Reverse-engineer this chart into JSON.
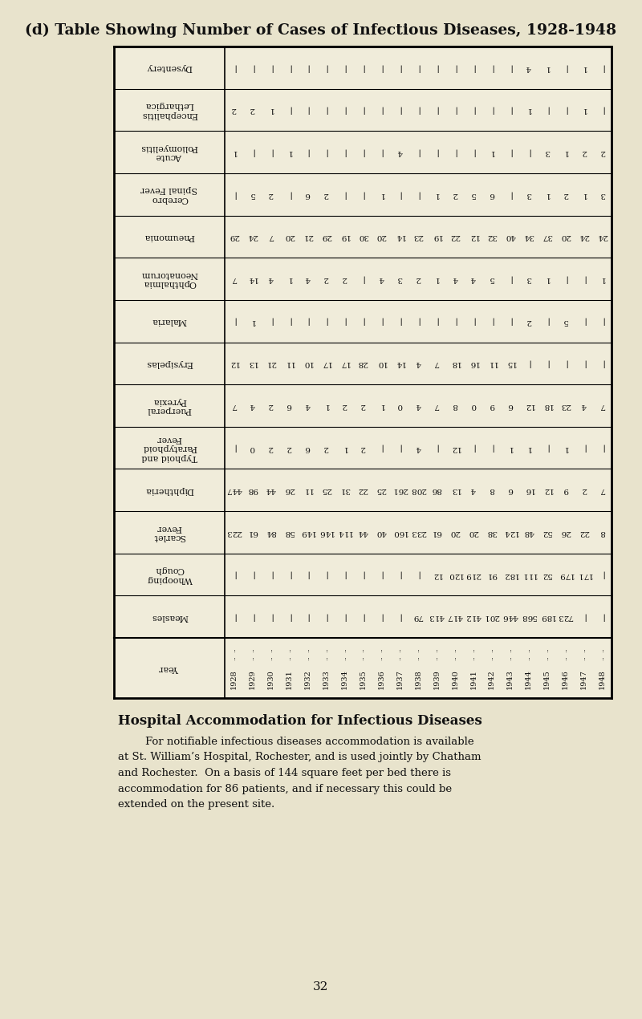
{
  "title": "(d) Table Showing Number of Cases of Infectious Diseases, 1928-1948",
  "years": [
    "1928",
    "1929",
    "1930",
    "1931",
    "1932",
    "1933",
    "1934",
    "1935",
    "1936",
    "1937",
    "1938",
    "1939",
    "1940",
    "1941",
    "1942",
    "1943",
    "1944",
    "1945",
    "1946",
    "1947",
    "1948"
  ],
  "rows": [
    {
      "label": "Dysentery",
      "values": [
        "",
        "",
        "",
        "",
        "",
        "",
        "",
        "",
        "",
        "",
        "",
        "",
        "",
        "",
        "",
        "",
        "4",
        "1",
        "",
        "1",
        ""
      ]
    },
    {
      "label": "Encephalitis\nLethargica",
      "values": [
        "2",
        "2",
        "1",
        "",
        "",
        "",
        "",
        "",
        "",
        "",
        "",
        "",
        "",
        "",
        "",
        "",
        "1",
        "",
        "",
        "1",
        ""
      ]
    },
    {
      "label": "Acute\nPoliomyelitis",
      "values": [
        "1",
        "",
        "",
        "1",
        "",
        "",
        "",
        "",
        "",
        "4",
        "",
        "",
        "",
        "",
        "1",
        "",
        "",
        "3",
        "1",
        "2",
        "2"
      ]
    },
    {
      "label": "Cerebro\nSpinal Fever",
      "values": [
        "",
        "5",
        "2",
        "",
        "6",
        "2",
        "",
        "",
        "1",
        "",
        "",
        "1",
        "2",
        "5",
        "6",
        "",
        "3",
        "1",
        "2",
        "1",
        "3"
      ]
    },
    {
      "label": "Pneumonia",
      "values": [
        "29",
        "24",
        "7",
        "20",
        "21",
        "29",
        "19",
        "30",
        "20",
        "14",
        "23",
        "19",
        "22",
        "12",
        "32",
        "40",
        "34",
        "37",
        "20",
        "24",
        "24"
      ]
    },
    {
      "label": "Ophthalmia\nNeonatorum",
      "values": [
        "7",
        "14",
        "4",
        "1",
        "4",
        "2",
        "2",
        "",
        "4",
        "3",
        "2",
        "1",
        "4",
        "4",
        "5",
        "",
        "3",
        "1",
        "",
        "",
        "1"
      ]
    },
    {
      "label": "Malaria",
      "values": [
        "",
        "1",
        "",
        "",
        "",
        "",
        "",
        "",
        "",
        "",
        "",
        "",
        "",
        "",
        "",
        "",
        "2",
        "",
        "5",
        "",
        ""
      ]
    },
    {
      "label": "Erysipelas",
      "values": [
        "12",
        "13",
        "21",
        "11",
        "10",
        "17",
        "17",
        "28",
        "10",
        "14",
        "4",
        "7",
        "18",
        "16",
        "11",
        "15",
        "",
        "",
        "",
        "",
        ""
      ]
    },
    {
      "label": "Puerperal\nPyrexia",
      "values": [
        "7",
        "4",
        "2",
        "6",
        "4",
        "1",
        "2",
        "2",
        "1",
        "0",
        "4",
        "7",
        "8",
        "0",
        "9",
        "6",
        "12",
        "18",
        "23",
        "4",
        "7"
      ]
    },
    {
      "label": "Typhoid and\nParatyphoid\nFever",
      "values": [
        "",
        "0",
        "2",
        "2",
        "6",
        "2",
        "1",
        "2",
        "",
        "",
        "4",
        "",
        "12",
        "",
        "",
        "1",
        "1",
        "",
        "1",
        "",
        ""
      ]
    },
    {
      "label": "Diphtheria",
      "values": [
        "447",
        "98",
        "44",
        "26",
        "11",
        "25",
        "31",
        "22",
        "25",
        "261",
        "208",
        "86",
        "13",
        "4",
        "8",
        "6",
        "16",
        "12",
        "9",
        "2",
        "7"
      ]
    },
    {
      "label": "Scarlet\nFever",
      "values": [
        "223",
        "61",
        "84",
        "58",
        "149",
        "146",
        "114",
        "44",
        "40",
        "160",
        "233",
        "61",
        "20",
        "20",
        "38",
        "124",
        "48",
        "52",
        "26",
        "22",
        "8"
      ]
    },
    {
      "label": "Whooping\nCough",
      "values": [
        "",
        "",
        "",
        "",
        "",
        "",
        "",
        "",
        "",
        "",
        "",
        "12",
        "120",
        "219",
        "91",
        "182",
        "111",
        "52",
        "179",
        "171",
        ""
      ]
    },
    {
      "label": "Measles",
      "values": [
        "",
        "",
        "",
        "",
        "",
        "",
        "",
        "",
        "",
        "",
        "79",
        "413",
        "417",
        "412",
        "201",
        "446",
        "568",
        "189",
        "723",
        "",
        ""
      ]
    }
  ],
  "background_color": "#e8e3cc",
  "paper_color": "#f0ecda",
  "text_color": "#111111",
  "title_fontsize": 13.5,
  "cell_fontsize": 7.5,
  "label_fontsize": 8,
  "year_fontsize": 7,
  "footer_title": "Hospital Accommodation for Infectious Diseases",
  "footer_text": "        For notifiable infectious diseases accommodation is available\nat St. William’s Hospital, Rochester, and is used jointly by Chatham\nand Rochester.  On a basis of 144 square feet per bed there is\naccommodation for 86 patients, and if necessary this could be\nextended on the present site.",
  "page_number": "32"
}
